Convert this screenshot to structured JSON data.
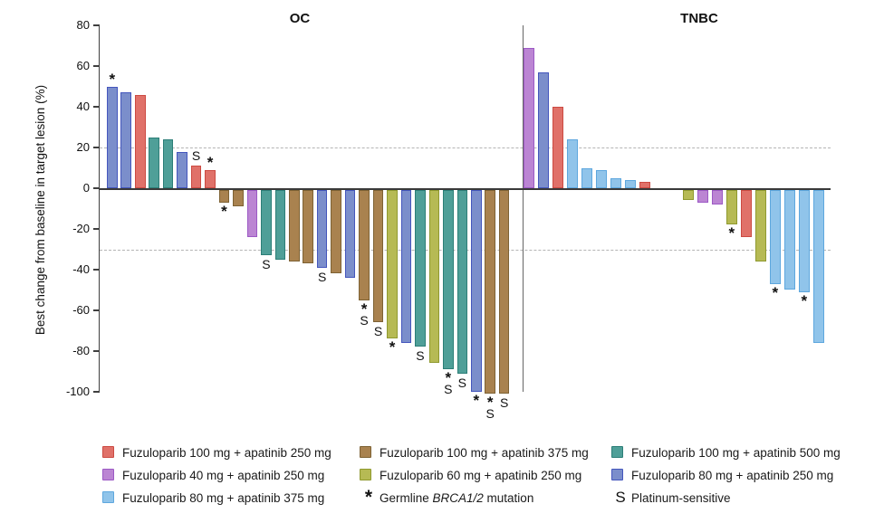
{
  "figure": {
    "legend": {
      "columns": [
        [
          {
            "swatch": "red",
            "pre": "Fuzuloparib 100 mg + apatinib 250 mg"
          },
          {
            "swatch": "orchid",
            "pre": "Fuzuloparib 40 mg + apatinib 250 mg"
          },
          {
            "swatch": "sky",
            "pre": "Fuzuloparib 80 mg + apatinib 375 mg"
          }
        ],
        [
          {
            "swatch": "brown",
            "pre": "Fuzuloparib 100 mg + apatinib 375 mg"
          },
          {
            "swatch": "olive",
            "pre": "Fuzuloparib 60 mg + apatinib 250 mg"
          },
          {
            "marker": "*",
            "pre": "Germline ",
            "italic": "BRCA1/2",
            "post": " mutation"
          }
        ],
        [
          {
            "swatch": "teal",
            "pre": "Fuzuloparib 100 mg + apatinib 500 mg"
          },
          {
            "swatch": "periwinkle",
            "pre": "Fuzuloparib 80 mg + apatinib 250 mg"
          },
          {
            "marker": "S",
            "pre": "Platinum-sensitive"
          }
        ]
      ]
    }
  },
  "chart_data": {
    "type": "bar",
    "subtype": "waterfall",
    "ylabel": "Best change from baseline in target lesion (%)",
    "ylim": [
      -100,
      80
    ],
    "yticks": [
      80,
      60,
      40,
      20,
      0,
      -20,
      -40,
      -60,
      -80,
      -100
    ],
    "reference_lines_y": [
      20,
      -30
    ],
    "grid": "dashed-reference-lines-only",
    "legend_position": "bottom",
    "annotation_key": {
      "*": "Germline BRCA1/2 mutation",
      "S": "Platinum-sensitive"
    },
    "colors": {
      "red": {
        "fill": "#e07169",
        "stroke": "#cc4a42"
      },
      "orchid": {
        "fill": "#bb85d3",
        "stroke": "#9c59c5"
      },
      "sky": {
        "fill": "#90c4ea",
        "stroke": "#5ea7de"
      },
      "brown": {
        "fill": "#a9824f",
        "stroke": "#7e6234"
      },
      "olive": {
        "fill": "#b6ba54",
        "stroke": "#8f992f"
      },
      "teal": {
        "fill": "#4f9f98",
        "stroke": "#2c7e77"
      },
      "periwinkle": {
        "fill": "#7b8ecb",
        "stroke": "#4456bd"
      }
    },
    "panels": [
      {
        "name": "OC",
        "bars": [
          {
            "v": 50,
            "c": "periwinkle",
            "a": "*"
          },
          {
            "v": 47,
            "c": "periwinkle",
            "a": ""
          },
          {
            "v": 46,
            "c": "red",
            "a": ""
          },
          {
            "v": 25,
            "c": "teal",
            "a": ""
          },
          {
            "v": 24,
            "c": "teal",
            "a": ""
          },
          {
            "v": 18,
            "c": "periwinkle",
            "a": ""
          },
          {
            "v": 11,
            "c": "red",
            "a": "S"
          },
          {
            "v": 9,
            "c": "red",
            "a": "*"
          },
          {
            "v": -6,
            "c": "brown",
            "a": "*"
          },
          {
            "v": -8,
            "c": "brown",
            "a": ""
          },
          {
            "v": -23,
            "c": "orchid",
            "a": ""
          },
          {
            "v": -32,
            "c": "teal",
            "a": "S"
          },
          {
            "v": -34,
            "c": "teal",
            "a": ""
          },
          {
            "v": -35,
            "c": "brown",
            "a": ""
          },
          {
            "v": -36,
            "c": "brown",
            "a": ""
          },
          {
            "v": -38,
            "c": "periwinkle",
            "a": "S"
          },
          {
            "v": -41,
            "c": "brown",
            "a": ""
          },
          {
            "v": -43,
            "c": "periwinkle",
            "a": ""
          },
          {
            "v": -54,
            "c": "brown",
            "a": "*S"
          },
          {
            "v": -65,
            "c": "brown",
            "a": "S"
          },
          {
            "v": -73,
            "c": "olive",
            "a": "*"
          },
          {
            "v": -75,
            "c": "periwinkle",
            "a": ""
          },
          {
            "v": -77,
            "c": "teal",
            "a": "S"
          },
          {
            "v": -85,
            "c": "olive",
            "a": ""
          },
          {
            "v": -88,
            "c": "teal",
            "a": "*S"
          },
          {
            "v": -90,
            "c": "teal",
            "a": "S"
          },
          {
            "v": -99,
            "c": "periwinkle",
            "a": "*"
          },
          {
            "v": -100,
            "c": "brown",
            "a": "*S"
          },
          {
            "v": -100,
            "c": "brown",
            "a": "S"
          }
        ]
      },
      {
        "name": "TNBC",
        "bars": [
          {
            "v": 69,
            "c": "orchid",
            "a": ""
          },
          {
            "v": 57,
            "c": "periwinkle",
            "a": ""
          },
          {
            "v": 40,
            "c": "red",
            "a": ""
          },
          {
            "v": 24,
            "c": "sky",
            "a": ""
          },
          {
            "v": 10,
            "c": "sky",
            "a": ""
          },
          {
            "v": 9,
            "c": "sky",
            "a": ""
          },
          {
            "v": 5,
            "c": "sky",
            "a": ""
          },
          {
            "v": 4,
            "c": "sky",
            "a": ""
          },
          {
            "v": 3,
            "c": "red",
            "a": ""
          },
          {
            "v": 0,
            "c": null,
            "a": ""
          },
          {
            "v": 0,
            "c": null,
            "a": ""
          },
          {
            "v": -5,
            "c": "olive",
            "a": ""
          },
          {
            "v": -6,
            "c": "orchid",
            "a": ""
          },
          {
            "v": -7,
            "c": "orchid",
            "a": ""
          },
          {
            "v": -17,
            "c": "olive",
            "a": "*"
          },
          {
            "v": -23,
            "c": "red",
            "a": ""
          },
          {
            "v": -35,
            "c": "olive",
            "a": ""
          },
          {
            "v": -46,
            "c": "sky",
            "a": "*"
          },
          {
            "v": -49,
            "c": "sky",
            "a": ""
          },
          {
            "v": -50,
            "c": "sky",
            "a": "*"
          },
          {
            "v": -75,
            "c": "sky",
            "a": ""
          }
        ]
      }
    ]
  }
}
